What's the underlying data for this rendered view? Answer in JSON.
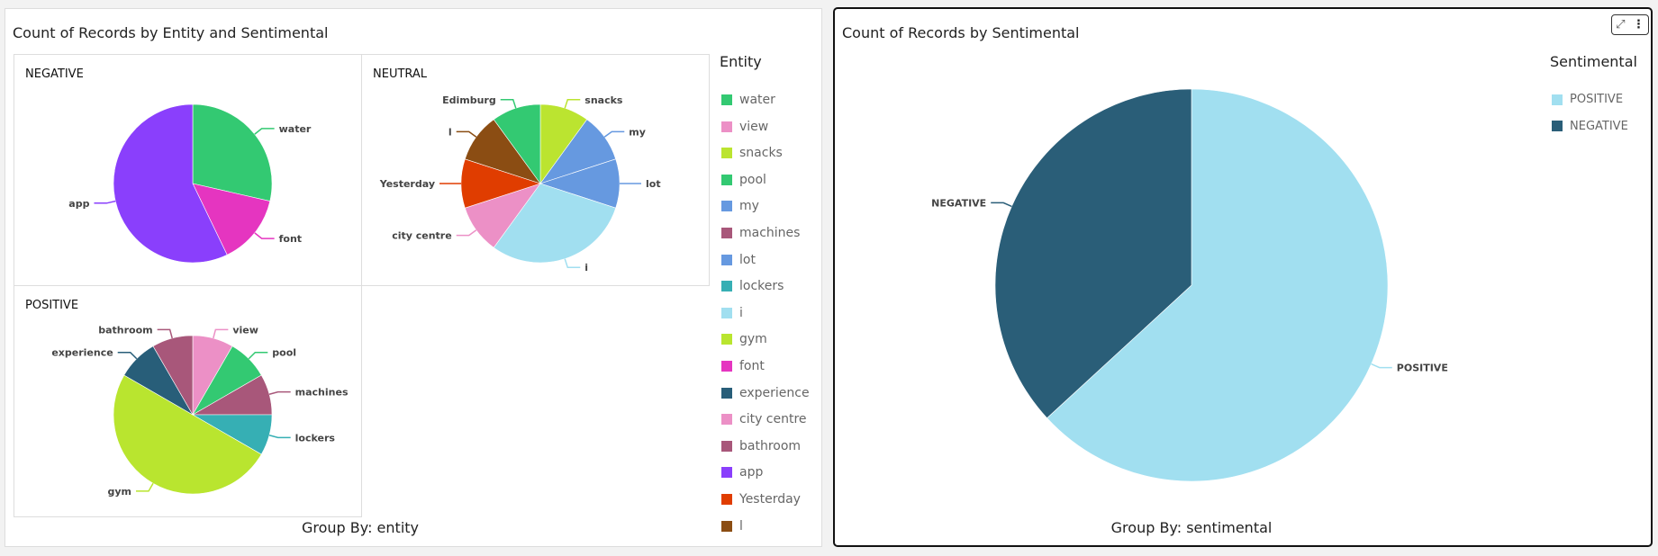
{
  "colors": {
    "water": "#33c972",
    "view": "#ec90c6",
    "snacks": "#bbe430",
    "pool": "#33c972",
    "my": "#6699e0",
    "machines": "#a8577a",
    "lot": "#6699e0",
    "lockers": "#36afb4",
    "i": "#a1dff0",
    "gym": "#b9e52f",
    "font": "#e535c0",
    "experience": "#285e79",
    "city centre": "#ec90c6",
    "bathroom": "#a8577a",
    "app": "#8a3ffc",
    "Yesterday": "#e03d00",
    "l": "#8b4d13",
    "Edimburg": "#33c972",
    "POSITIVE": "#a1dff0",
    "NEGATIVE": "#2a5e78"
  },
  "chart_data": [
    {
      "type": "pie",
      "title": "Count of Records by Entity and Sentimental",
      "group_by": "Group By: entity",
      "legend_title": "Entity",
      "legend_placement": "right",
      "legend": [
        "water",
        "view",
        "snacks",
        "pool",
        "my",
        "machines",
        "lot",
        "lockers",
        "i",
        "gym",
        "font",
        "experience",
        "city centre",
        "bathroom",
        "app",
        "Yesterday",
        "l"
      ],
      "facets": [
        {
          "name": "NEGATIVE",
          "slices": [
            {
              "label": "water",
              "value": 2
            },
            {
              "label": "font",
              "value": 1
            },
            {
              "label": "app",
              "value": 4
            }
          ]
        },
        {
          "name": "NEUTRAL",
          "slices": [
            {
              "label": "snacks",
              "value": 1
            },
            {
              "label": "my",
              "value": 1
            },
            {
              "label": "lot",
              "value": 1
            },
            {
              "label": "i",
              "value": 3
            },
            {
              "label": "city centre",
              "value": 1
            },
            {
              "label": "Yesterday",
              "value": 1
            },
            {
              "label": "l",
              "value": 1
            },
            {
              "label": "Edimburg",
              "value": 1
            }
          ]
        },
        {
          "name": "POSITIVE",
          "slices": [
            {
              "label": "view",
              "value": 1
            },
            {
              "label": "pool",
              "value": 1
            },
            {
              "label": "machines",
              "value": 1
            },
            {
              "label": "lockers",
              "value": 1
            },
            {
              "label": "gym",
              "value": 6
            },
            {
              "label": "experience",
              "value": 1
            },
            {
              "label": "bathroom",
              "value": 1
            }
          ]
        }
      ]
    },
    {
      "type": "pie",
      "title": "Count of Records by Sentimental",
      "group_by": "Group By: sentimental",
      "legend_title": "Sentimental",
      "legend_placement": "top-right",
      "legend": [
        "POSITIVE",
        "NEGATIVE"
      ],
      "slices": [
        {
          "label": "POSITIVE",
          "value": 12
        },
        {
          "label": "NEGATIVE",
          "value": 7
        }
      ]
    }
  ],
  "actions": {
    "expand_icon": "⤢",
    "menu_icon": "⋮"
  }
}
